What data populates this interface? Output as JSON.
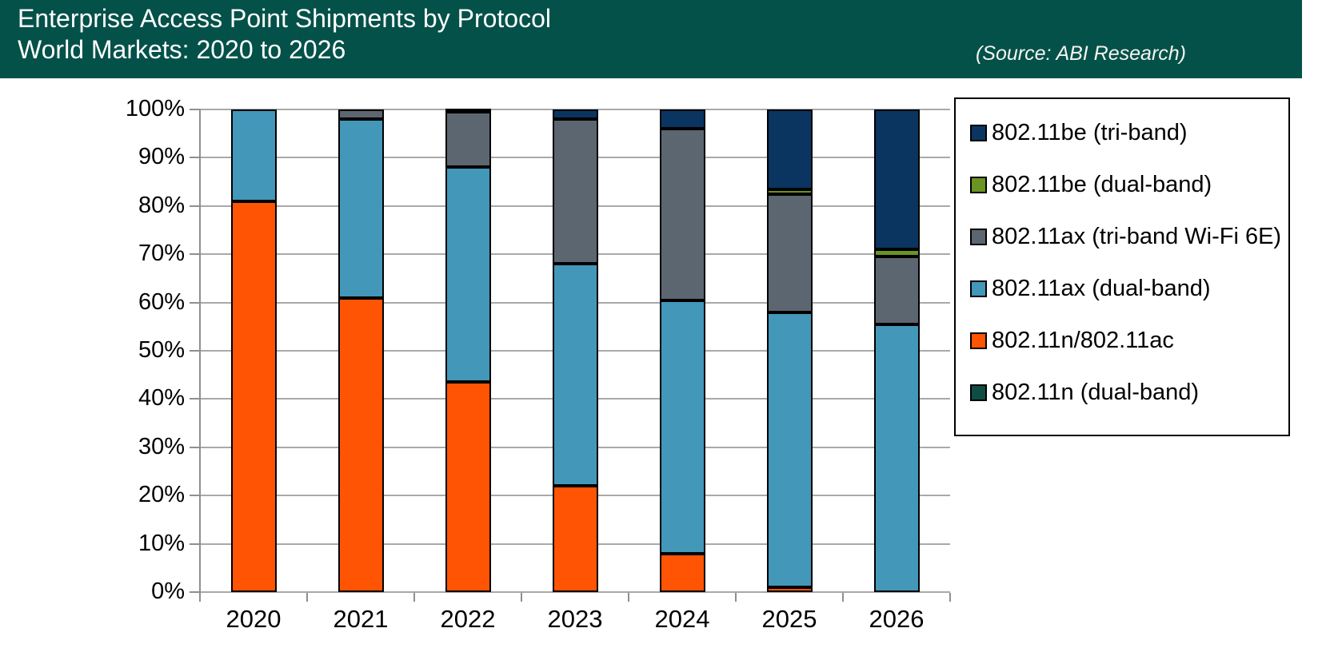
{
  "header": {
    "title_line1": "Enterprise Access Point Shipments by Protocol",
    "title_line2": "World Markets: 2020 to 2026",
    "source": "(Source: ABI Research)",
    "background_color": "#045149"
  },
  "chart_data": {
    "type": "bar",
    "stacked": true,
    "units": "percent share",
    "title": "Enterprise Access Point Shipments by Protocol",
    "subtitle": "World Markets: 2020 to 2026",
    "xlabel": "",
    "ylabel": "",
    "ylim": [
      0,
      100
    ],
    "y_tick_labels": [
      "0%",
      "10%",
      "20%",
      "30%",
      "40%",
      "50%",
      "60%",
      "70%",
      "80%",
      "90%",
      "100%"
    ],
    "grid": "horizontal",
    "legend_position": "right",
    "categories": [
      "2020",
      "2021",
      "2022",
      "2023",
      "2024",
      "2025",
      "2026"
    ],
    "series": [
      {
        "name": "802.11n (dual-band)",
        "color": "#0F4C44",
        "values": [
          0,
          0,
          0,
          0,
          0,
          0,
          0
        ]
      },
      {
        "name": "802.11n/802.11ac",
        "color": "#FF5404",
        "values": [
          81,
          61,
          43.5,
          22,
          8,
          1,
          0
        ]
      },
      {
        "name": "802.11ax (dual-band)",
        "color": "#4397B9",
        "values": [
          19,
          37,
          44.5,
          46,
          52.5,
          57,
          55.5
        ]
      },
      {
        "name": "802.11ax (tri-band Wi-Fi 6E)",
        "color": "#5C6670",
        "values": [
          0,
          2,
          11.5,
          30,
          35.5,
          24.5,
          14
        ]
      },
      {
        "name": "802.11be (dual-band)",
        "color": "#6A9423",
        "values": [
          0,
          0,
          0,
          0,
          0,
          1,
          1.5
        ]
      },
      {
        "name": "802.11be (tri-band)",
        "color": "#0B3561",
        "values": [
          0,
          0,
          0.5,
          2,
          4,
          16.5,
          29
        ]
      }
    ],
    "legend_order_top_to_bottom": [
      "802.11be (tri-band)",
      "802.11be (dual-band)",
      "802.11ax (tri-band Wi-Fi 6E)",
      "802.11ax (dual-band)",
      "802.11n/802.11ac",
      "802.11n (dual-band)"
    ]
  },
  "colors": {
    "grid": "#A9A9A9",
    "axis": "#8F8F8F",
    "bar_border": "#000000",
    "legend_border": "#000000",
    "header_text": "#FFFFFF"
  }
}
